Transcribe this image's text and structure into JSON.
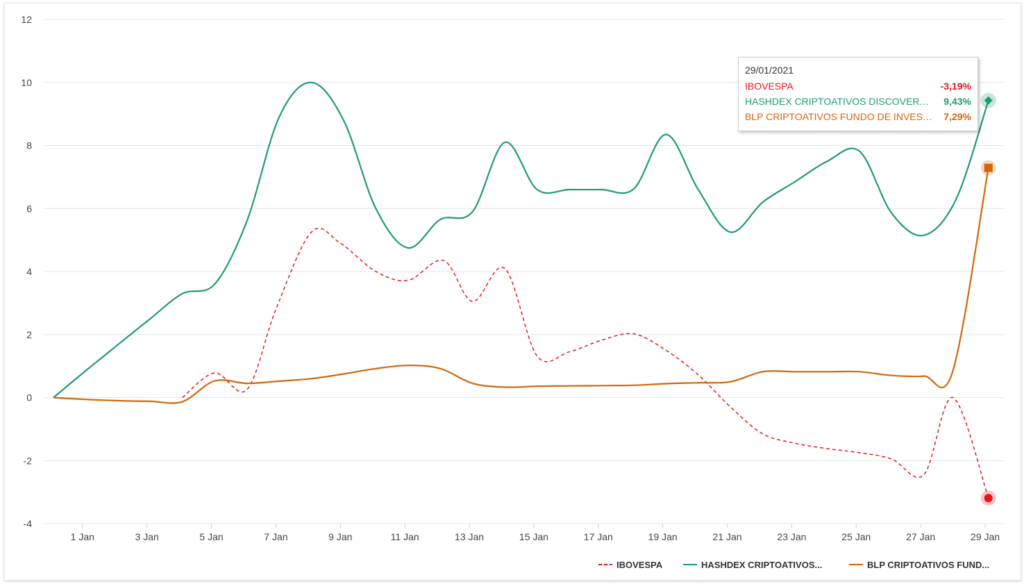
{
  "colors": {
    "ibovespa": "#e8141b",
    "hashdex": "#1f9a72",
    "blp": "#d2660a",
    "grid": "#e4e4e4"
  },
  "tooltip": {
    "date": "29/01/2021",
    "rows": [
      {
        "name": "IBOVESPA",
        "value": "-3,19%"
      },
      {
        "name": "HASHDEX CRIPTOATIVOS DISCOVERY ...",
        "value": "9,43%"
      },
      {
        "name": "BLP CRIPTOATIVOS FUNDO DE INVEST...",
        "value": "7,29%"
      }
    ]
  },
  "chart_data": {
    "type": "line",
    "title": "",
    "xlabel": "",
    "ylabel": "",
    "ylim": [
      -4,
      12
    ],
    "xlim": [
      0.1,
      29.3
    ],
    "yticks": [
      -4,
      -2,
      0,
      2,
      4,
      6,
      8,
      10,
      12
    ],
    "xticks": [
      {
        "x": 1,
        "label": "1 Jan"
      },
      {
        "x": 3,
        "label": "3 Jan"
      },
      {
        "x": 5,
        "label": "5 Jan"
      },
      {
        "x": 7,
        "label": "7 Jan"
      },
      {
        "x": 9,
        "label": "9 Jan"
      },
      {
        "x": 11,
        "label": "11 Jan"
      },
      {
        "x": 13,
        "label": "13 Jan"
      },
      {
        "x": 15,
        "label": "15 Jan"
      },
      {
        "x": 17,
        "label": "17 Jan"
      },
      {
        "x": 19,
        "label": "19 Jan"
      },
      {
        "x": 21,
        "label": "21 Jan"
      },
      {
        "x": 23,
        "label": "23 Jan"
      },
      {
        "x": 25,
        "label": "25 Jan"
      },
      {
        "x": 27,
        "label": "27 Jan"
      },
      {
        "x": 29,
        "label": "29 Jan"
      }
    ],
    "grid": true,
    "legend_position": "bottom-right",
    "series": [
      {
        "name": "IBOVESPA",
        "legend_label": "IBOVESPA",
        "style": "dashed",
        "marker": "circle",
        "points": [
          [
            4.1,
            0.0
          ],
          [
            5.1,
            0.78
          ],
          [
            6.1,
            0.25
          ],
          [
            7.0,
            2.8
          ],
          [
            8.1,
            5.25
          ],
          [
            9.0,
            4.9
          ],
          [
            10.1,
            4.0
          ],
          [
            11.1,
            3.72
          ],
          [
            12.2,
            4.35
          ],
          [
            13.1,
            3.05
          ],
          [
            14.1,
            4.1
          ],
          [
            15.1,
            1.32
          ],
          [
            16.1,
            1.45
          ],
          [
            17.1,
            1.82
          ],
          [
            18.1,
            2.02
          ],
          [
            19.1,
            1.5
          ],
          [
            20.1,
            0.72
          ],
          [
            21.1,
            -0.3
          ],
          [
            22.1,
            -1.15
          ],
          [
            23.1,
            -1.45
          ],
          [
            24.1,
            -1.62
          ],
          [
            25.1,
            -1.75
          ],
          [
            26.1,
            -1.95
          ],
          [
            27.1,
            -2.45
          ],
          [
            28.0,
            0.0
          ],
          [
            29.1,
            -3.19
          ]
        ]
      },
      {
        "name": "HASHDEX CRIPTOATIVOS DISCOVERY",
        "legend_label": "HASHDEX CRIPTOATIVOS...",
        "style": "solid",
        "marker": "diamond",
        "points": [
          [
            0.1,
            0.0
          ],
          [
            1.1,
            0.85
          ],
          [
            2.1,
            1.68
          ],
          [
            3.1,
            2.5
          ],
          [
            4.1,
            3.3
          ],
          [
            5.1,
            3.6
          ],
          [
            6.1,
            5.6
          ],
          [
            7.1,
            8.9
          ],
          [
            8.1,
            10.0
          ],
          [
            9.1,
            8.8
          ],
          [
            10.1,
            6.0
          ],
          [
            11.1,
            4.75
          ],
          [
            12.1,
            5.65
          ],
          [
            13.1,
            5.9
          ],
          [
            14.1,
            8.1
          ],
          [
            15.1,
            6.6
          ],
          [
            16.1,
            6.6
          ],
          [
            17.1,
            6.6
          ],
          [
            18.1,
            6.62
          ],
          [
            19.1,
            8.35
          ],
          [
            20.1,
            6.6
          ],
          [
            21.1,
            5.25
          ],
          [
            22.1,
            6.2
          ],
          [
            23.1,
            6.85
          ],
          [
            24.1,
            7.5
          ],
          [
            25.1,
            7.82
          ],
          [
            26.1,
            5.85
          ],
          [
            27.1,
            5.15
          ],
          [
            28.1,
            6.3
          ],
          [
            29.1,
            9.43
          ]
        ]
      },
      {
        "name": "BLP CRIPTOATIVOS FUNDO DE INVESTIMENTO",
        "legend_label": "BLP CRIPTOATIVOS FUND...",
        "style": "solid",
        "marker": "square",
        "points": [
          [
            0.1,
            0.0
          ],
          [
            1.1,
            -0.06
          ],
          [
            2.1,
            -0.1
          ],
          [
            3.1,
            -0.12
          ],
          [
            4.1,
            -0.13
          ],
          [
            5.1,
            0.53
          ],
          [
            6.1,
            0.45
          ],
          [
            7.1,
            0.52
          ],
          [
            8.1,
            0.6
          ],
          [
            9.1,
            0.75
          ],
          [
            10.1,
            0.92
          ],
          [
            11.1,
            1.02
          ],
          [
            12.1,
            0.92
          ],
          [
            13.1,
            0.45
          ],
          [
            14.1,
            0.33
          ],
          [
            15.1,
            0.36
          ],
          [
            16.1,
            0.37
          ],
          [
            17.1,
            0.38
          ],
          [
            18.1,
            0.39
          ],
          [
            19.1,
            0.44
          ],
          [
            20.1,
            0.47
          ],
          [
            21.1,
            0.5
          ],
          [
            22.1,
            0.82
          ],
          [
            23.1,
            0.82
          ],
          [
            24.1,
            0.82
          ],
          [
            25.1,
            0.82
          ],
          [
            26.1,
            0.7
          ],
          [
            27.1,
            0.68
          ],
          [
            28.0,
            0.85
          ],
          [
            29.1,
            7.29
          ]
        ]
      }
    ]
  }
}
